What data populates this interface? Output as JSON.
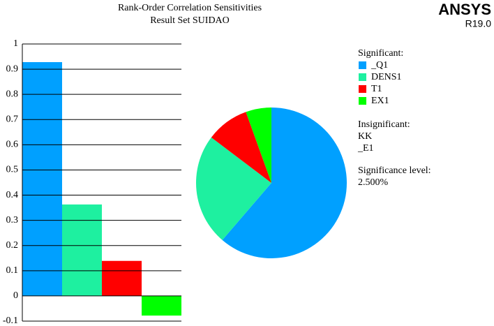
{
  "header": {
    "logo": "ANSYS",
    "version": "R19.0"
  },
  "chart_data": [
    {
      "type": "bar",
      "title": "Rank-Order Correlation Sensitivities",
      "subtitle": "Result Set SUIDAO",
      "categories": [
        "_Q1",
        "DENS1",
        "T1",
        "EX1"
      ],
      "values": [
        0.928,
        0.363,
        0.139,
        -0.078
      ],
      "colors": [
        "#00a0ff",
        "#1ef0a0",
        "#ff0000",
        "#00ff00"
      ],
      "ylim": [
        -0.1,
        1
      ],
      "yticks": [
        -0.1,
        0,
        0.1,
        0.2,
        0.3,
        0.4,
        0.5,
        0.6,
        0.7,
        0.8,
        0.9,
        1
      ],
      "grid": true
    },
    {
      "type": "pie",
      "legend_title": "Significant:",
      "values": [
        61.3,
        24.0,
        9.2,
        5.5
      ],
      "insignificant_label": "Insignificant:",
      "insignificant": [
        "KK",
        "_E1"
      ],
      "significance_label": "Significance level:",
      "significance_level": "2.500%"
    }
  ]
}
